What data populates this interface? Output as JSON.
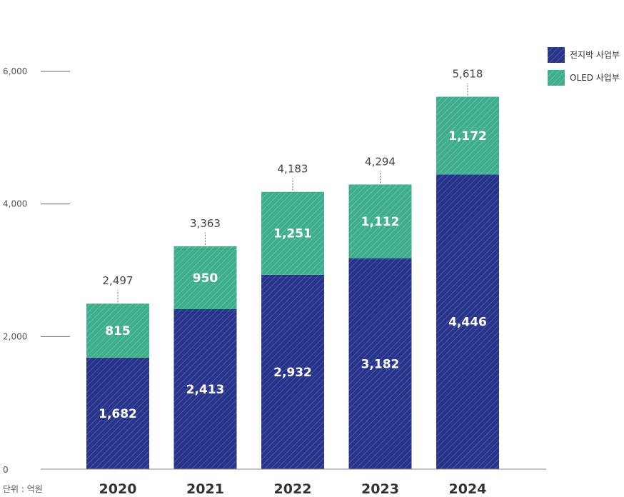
{
  "chart_data": {
    "type": "bar",
    "stacked": true,
    "categories": [
      "2020",
      "2021",
      "2022",
      "2023",
      "2024"
    ],
    "series": [
      {
        "name": "전지박 사업부",
        "values": [
          1682,
          2413,
          2932,
          3182,
          4446
        ],
        "color": "#27348b"
      },
      {
        "name": "OLED 사업부",
        "values": [
          815,
          950,
          1251,
          1112,
          1172
        ],
        "color": "#3fae8e"
      }
    ],
    "totals": [
      "2,497",
      "3,363",
      "4,183",
      "4,294",
      "5,618"
    ],
    "value_labels": [
      [
        "1,682",
        "2,413",
        "2,932",
        "3,182",
        "4,446"
      ],
      [
        "815",
        "950",
        "1,251",
        "1,112",
        "1,172"
      ]
    ],
    "ylim": [
      0,
      6000
    ],
    "yticks": [
      {
        "value": 0,
        "label": "0"
      },
      {
        "value": 2000,
        "label": "2,000"
      },
      {
        "value": 4000,
        "label": "4,000"
      },
      {
        "value": 6000,
        "label": "6,000"
      }
    ],
    "unit_label": "단위 : 억원",
    "legend_position": "top-right",
    "hatched": true,
    "grid": false
  }
}
